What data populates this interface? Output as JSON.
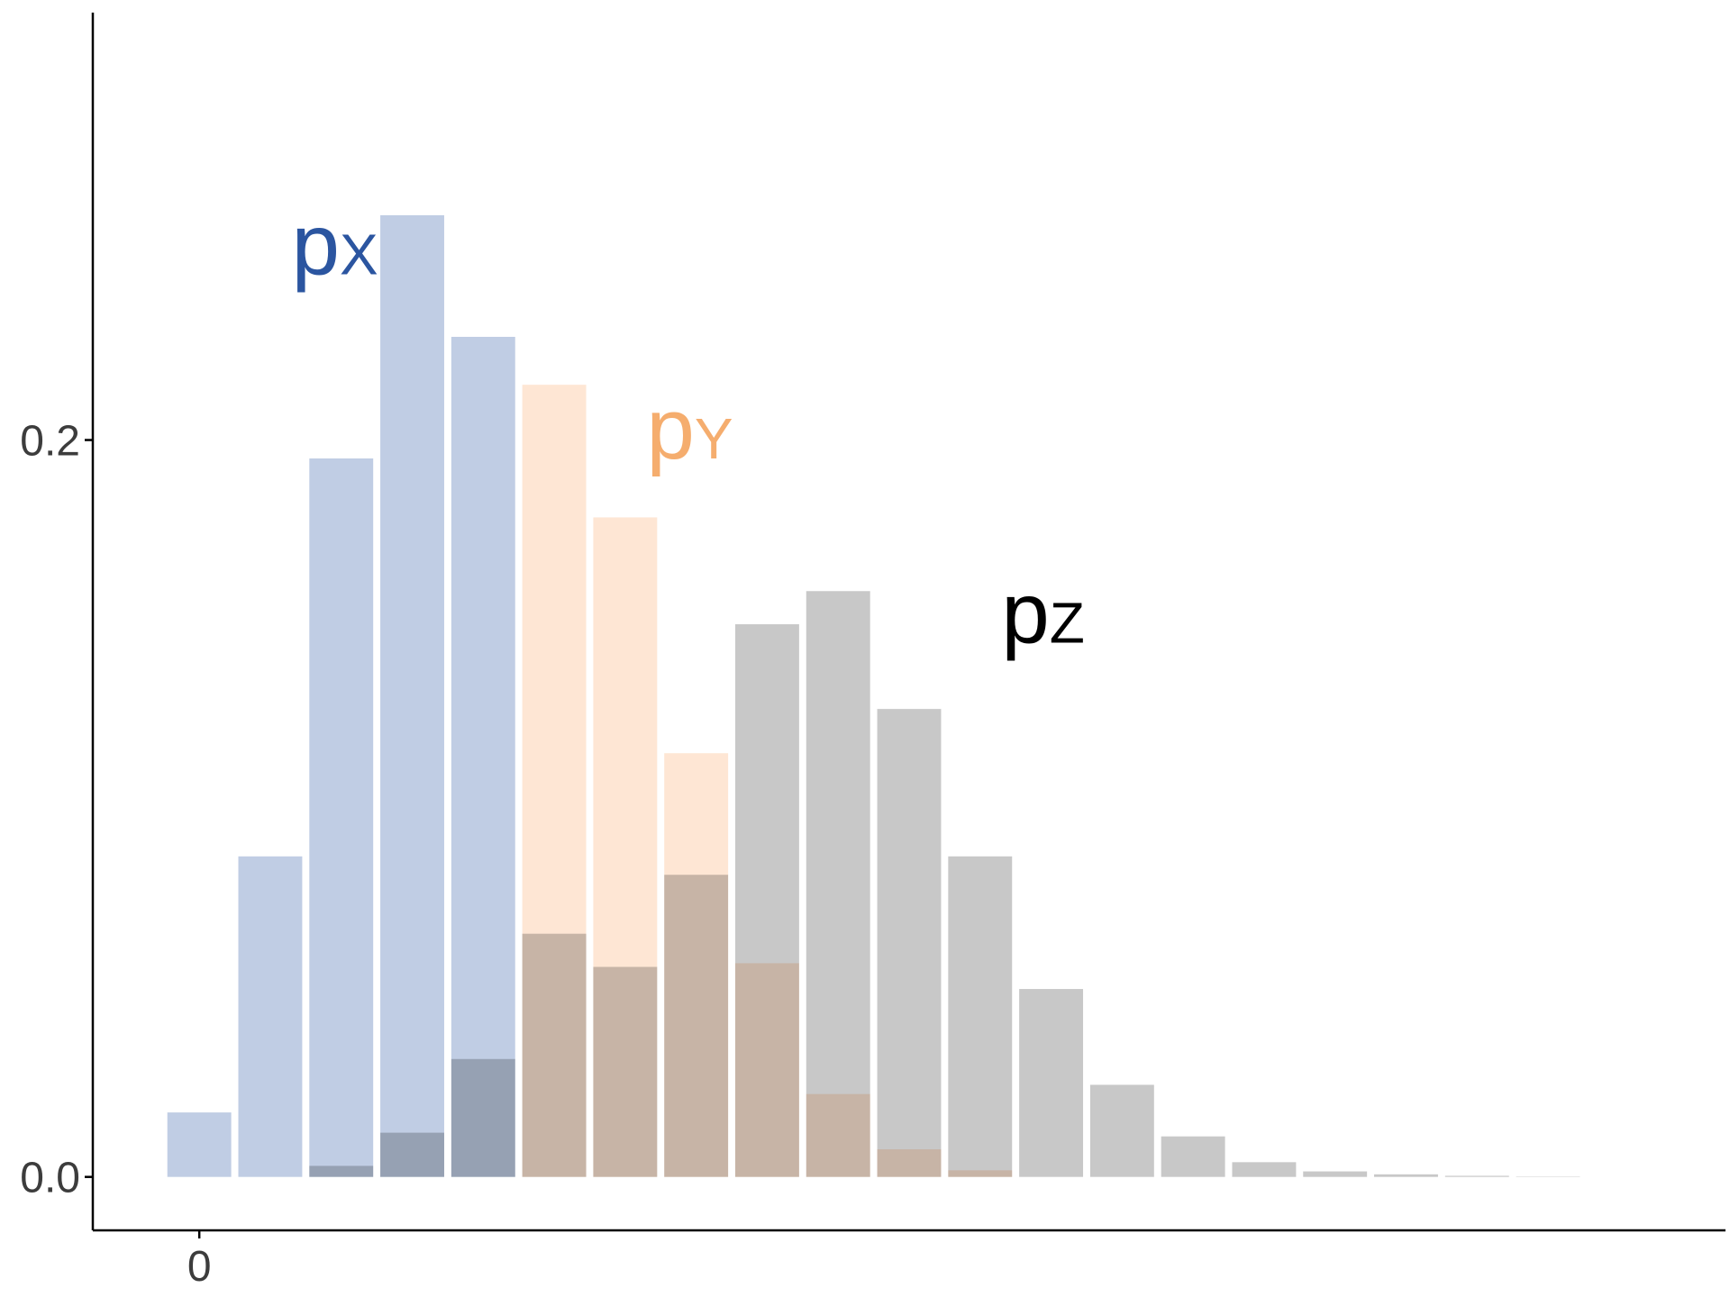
{
  "chart_data": {
    "type": "bar",
    "title": "",
    "xlabel": "",
    "ylabel": "",
    "x": [
      0,
      1,
      2,
      3,
      4,
      5,
      6,
      7,
      8,
      9,
      10,
      11,
      12,
      13,
      14,
      15,
      16,
      17,
      18,
      19
    ],
    "xlim": [
      -1.5,
      21.5
    ],
    "ylim": [
      -0.0145,
      0.316
    ],
    "x_ticks": [
      {
        "value": 0,
        "label": "0"
      }
    ],
    "y_ticks": [
      {
        "value": 0.0,
        "label": "0.0"
      },
      {
        "value": 0.2,
        "label": "0.2"
      }
    ],
    "grid": false,
    "legend": "none",
    "series": [
      {
        "name": "p",
        "label_sub": "Z",
        "color": "#c8c8c8",
        "label_color": "#000000",
        "label_at": [
          11.3,
          0.145
        ],
        "values": [
          0.0,
          0.0,
          0.003,
          0.012,
          0.032,
          0.066,
          0.057,
          0.082,
          0.15,
          0.159,
          0.127,
          0.087,
          0.051,
          0.025,
          0.011,
          0.004,
          0.0015,
          0.0007,
          0.0003,
          0.0001
        ]
      },
      {
        "name": "p",
        "label_sub": "Y",
        "color": "#fee6d4",
        "label_color": "#f5ad6e",
        "label_at": [
          6.3,
          0.195
        ],
        "values": [
          0.0,
          0.0,
          0.0,
          0.0,
          0.0,
          0.215,
          0.179,
          0.115,
          0.058,
          0.0225,
          0.0075,
          0.0018,
          0.0,
          0.0,
          0.0,
          0.0,
          0.0,
          0.0,
          0.0,
          0.0
        ]
      },
      {
        "name": "p",
        "label_sub": "X",
        "color": "#c0cde4",
        "label_color": "#2b55a0",
        "label_at": [
          1.3,
          0.245
        ],
        "values": [
          0.0175,
          0.087,
          0.195,
          0.261,
          0.228,
          0.0,
          0.0,
          0.0,
          0.0,
          0.0,
          0.0,
          0.0,
          0.0,
          0.0,
          0.0,
          0.0,
          0.0,
          0.0,
          0.0,
          0.0
        ]
      }
    ]
  }
}
